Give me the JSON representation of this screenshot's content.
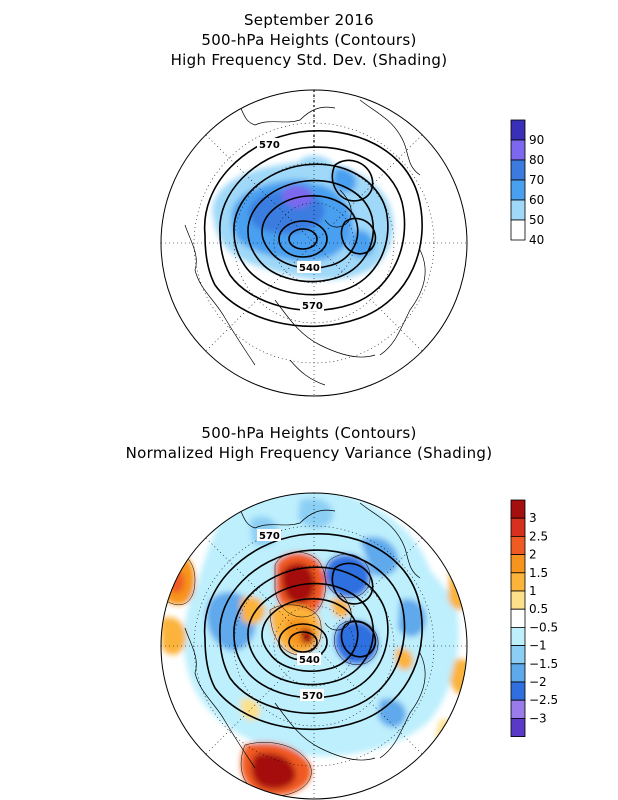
{
  "top_panel": {
    "title_lines": [
      "September 2016",
      "500-hPa Heights (Contours)",
      "High Frequency Std. Dev. (Shading)"
    ],
    "colorbar": {
      "labels": [
        "90",
        "80",
        "70",
        "60",
        "50",
        "40"
      ],
      "colors": [
        "#3a2fb8",
        "#7b68ee",
        "#3b7be0",
        "#4aa0f0",
        "#9fd8f8",
        "#ffffff"
      ]
    },
    "contour_labels": [
      "570",
      "540",
      "570"
    ]
  },
  "bottom_panel": {
    "title_lines": [
      "500-hPa Heights (Contours)",
      "Normalized High Frequency Variance (Shading)"
    ],
    "colorbar": {
      "labels": [
        "3",
        "2.5",
        "2",
        "1.5",
        "1",
        "0.5",
        "−0.5",
        "−1",
        "−1.5",
        "−2",
        "−2.5",
        "−3"
      ],
      "colors": [
        "#a50f0f",
        "#d7301f",
        "#f05a23",
        "#f7941d",
        "#fbb33a",
        "#fde08a",
        "#ffffff",
        "#bdeffd",
        "#8ccff5",
        "#5ea9ec",
        "#2f6fe0",
        "#9a7bea",
        "#5a38c8"
      ]
    },
    "contour_labels": [
      "570",
      "540",
      "570"
    ]
  }
}
